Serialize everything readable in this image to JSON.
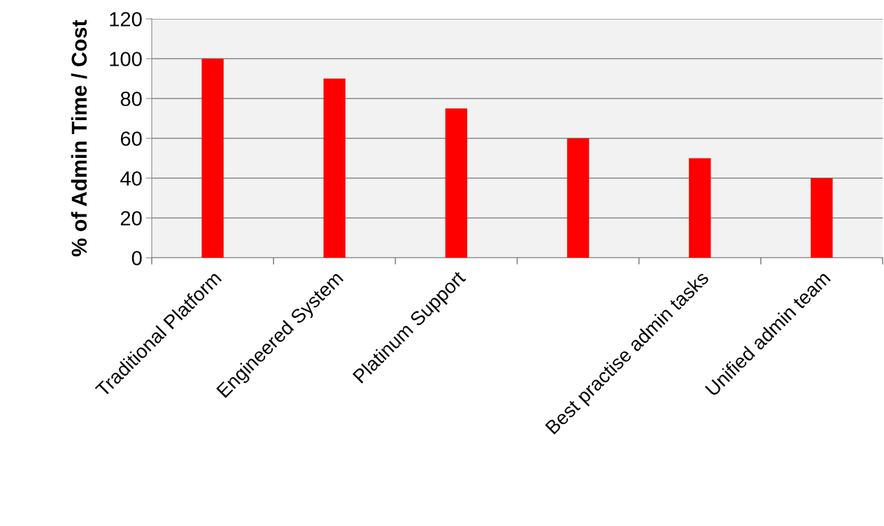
{
  "chart_data": {
    "type": "bar",
    "ylabel": "% of Admin Time / Cost",
    "categories": [
      "Traditional Platform",
      "Engineered System",
      "Platinum Support",
      null,
      "Best practise admin tasks",
      "Unified admin team"
    ],
    "values": [
      100,
      90,
      75,
      60,
      50,
      40
    ],
    "color": "#ff0000",
    "ylim": [
      0,
      120
    ],
    "yticks": [
      0,
      20,
      40,
      60,
      80,
      100,
      120
    ],
    "grid": "y"
  }
}
